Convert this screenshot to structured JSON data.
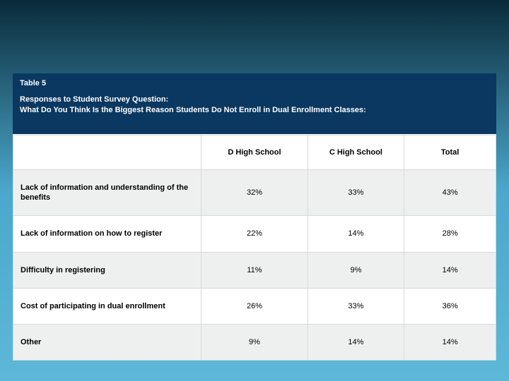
{
  "title": {
    "table_number": "Table 5",
    "question_line1": "Responses to Student Survey Question:",
    "question_line2": "What Do You Think Is the Biggest Reason Students Do Not Enroll in Dual Enrollment Classes:"
  },
  "table": {
    "type": "table",
    "background_color": "#ffffff",
    "header_bg": "#0a3860",
    "header_text_color": "#ffffff",
    "grid_color": "#d8d8d8",
    "shade_row_color": "#eef0f0",
    "font_size": 11,
    "columns": [
      "",
      "D High School",
      "C High School",
      "Total"
    ],
    "column_widths_pct": [
      39,
      22,
      20,
      19
    ],
    "rows": [
      {
        "label": "Lack of information and understanding of the benefits",
        "values": [
          "32%",
          "33%",
          "43%"
        ],
        "shaded": true
      },
      {
        "label": "Lack of information on how to register",
        "values": [
          "22%",
          "14%",
          "28%"
        ],
        "shaded": false
      },
      {
        "label": "Difficulty in registering",
        "values": [
          "11%",
          "9%",
          "14%"
        ],
        "shaded": true
      },
      {
        "label": "Cost of participating in dual enrollment",
        "values": [
          "26%",
          "33%",
          "36%"
        ],
        "shaded": false
      },
      {
        "label": "Other",
        "values": [
          "9%",
          "14%",
          "14%"
        ],
        "shaded": true
      }
    ]
  },
  "slide": {
    "bg_gradient_top": "#0a2a3a",
    "bg_gradient_mid": "#4ba8cc",
    "bg_gradient_bottom": "#5db8d8"
  }
}
